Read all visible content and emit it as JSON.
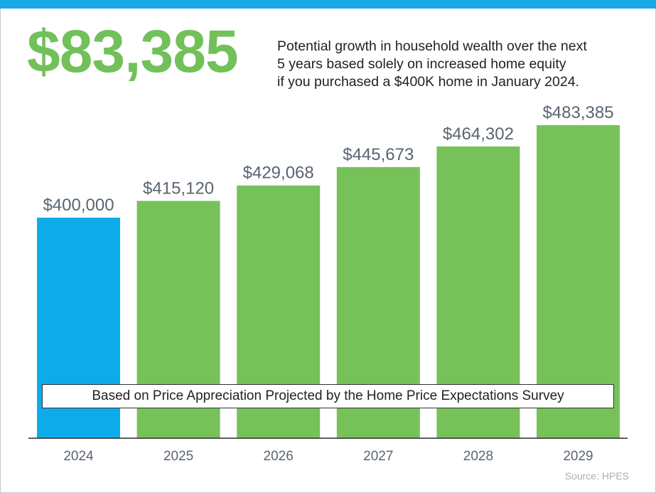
{
  "headline": {
    "value": "$83,385",
    "lines": [
      "Potential growth in household wealth over the next",
      "5 years based solely on increased home equity",
      "if you purchased a $400K home in January 2024."
    ]
  },
  "note": "Based on Price Appreciation Projected by the Home Price Expectations Survey",
  "source": "Source: HPES",
  "colors": {
    "accent_bar": "#18a8e6",
    "first_bar": "#0eabeb",
    "growth_bar": "#76c259",
    "headline": "#72c05a"
  },
  "chart_data": {
    "type": "bar",
    "categories": [
      "2024",
      "2025",
      "2026",
      "2027",
      "2028",
      "2029"
    ],
    "values": [
      400000,
      415120,
      429068,
      445673,
      464302,
      483385
    ],
    "data_labels": [
      "$400,000",
      "$415,120",
      "$429,068",
      "$445,673",
      "$464,302",
      "$483,385"
    ],
    "bar_colors": [
      "#0eabeb",
      "#76c259",
      "#76c259",
      "#76c259",
      "#76c259",
      "#76c259"
    ],
    "ylim": [
      0,
      483385
    ],
    "grid": false,
    "title": "",
    "xlabel": "",
    "ylabel": ""
  }
}
